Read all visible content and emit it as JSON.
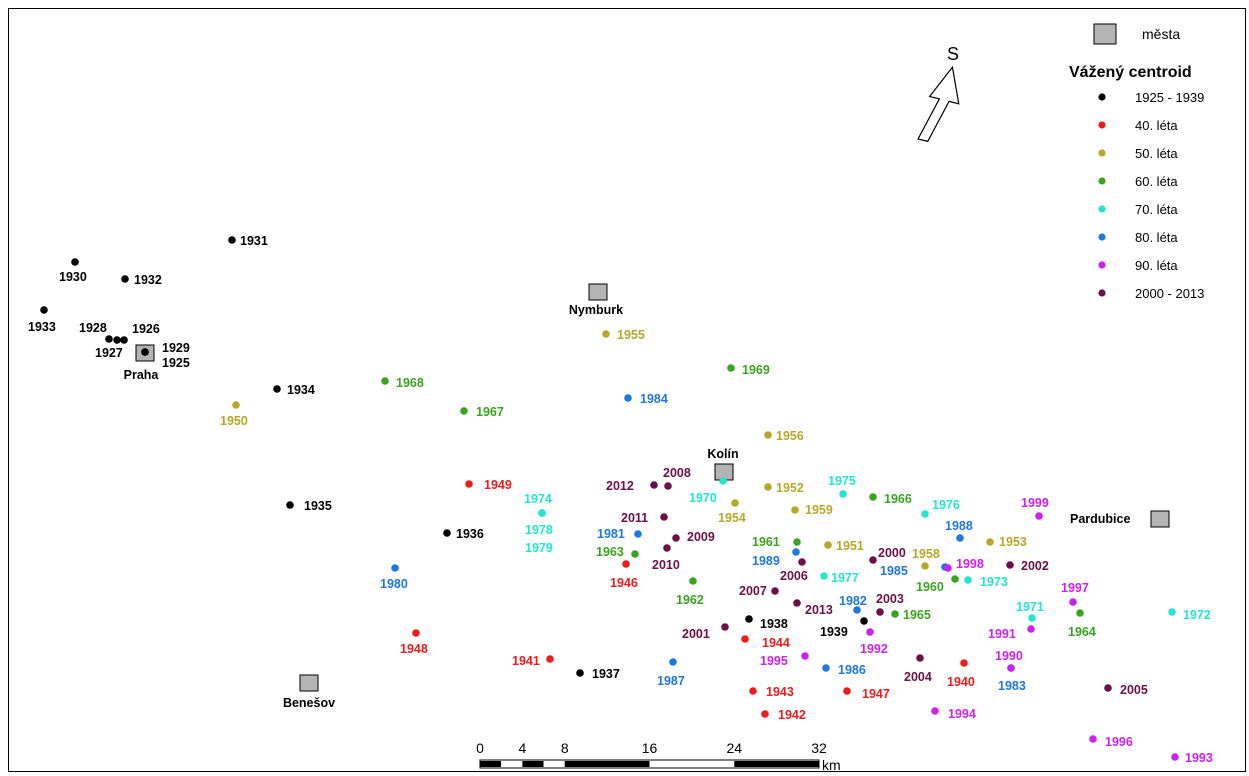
{
  "legend": {
    "city_label": "města",
    "title": "Vážený centroid",
    "items": [
      {
        "label": "1925 - 1939",
        "color": "#000000"
      },
      {
        "label": "40. léta",
        "color": "#ee1c1c"
      },
      {
        "label": "50. léta",
        "color": "#b5a82a"
      },
      {
        "label": "60. léta",
        "color": "#3aa31f"
      },
      {
        "label": "70. léta",
        "color": "#22e6cf"
      },
      {
        "label": "80. léta",
        "color": "#1f77e0"
      },
      {
        "label": "90. léta",
        "color": "#cc22ee"
      },
      {
        "label": "2000 - 2013",
        "color": "#6b1048"
      }
    ]
  },
  "north_arrow": {
    "label": "S"
  },
  "scale_bar": {
    "ticks": [
      "0",
      "4",
      "8",
      "16",
      "24",
      "32"
    ],
    "unit": "km"
  },
  "cities": [
    {
      "name": "Praha"
    },
    {
      "name": "Nymburk"
    },
    {
      "name": "Kolín"
    },
    {
      "name": "Pardubice"
    },
    {
      "name": "Benešov"
    }
  ],
  "centroids": [
    {
      "year": "1925"
    },
    {
      "year": "1926"
    },
    {
      "year": "1927"
    },
    {
      "year": "1928"
    },
    {
      "year": "1929"
    },
    {
      "year": "1930"
    },
    {
      "year": "1931"
    },
    {
      "year": "1932"
    },
    {
      "year": "1933"
    },
    {
      "year": "1934"
    },
    {
      "year": "1935"
    },
    {
      "year": "1936"
    },
    {
      "year": "1937"
    },
    {
      "year": "1938"
    },
    {
      "year": "1939"
    },
    {
      "year": "1940"
    },
    {
      "year": "1941"
    },
    {
      "year": "1942"
    },
    {
      "year": "1943"
    },
    {
      "year": "1944"
    },
    {
      "year": "1946"
    },
    {
      "year": "1947"
    },
    {
      "year": "1948"
    },
    {
      "year": "1949"
    },
    {
      "year": "1950"
    },
    {
      "year": "1951"
    },
    {
      "year": "1952"
    },
    {
      "year": "1953"
    },
    {
      "year": "1954"
    },
    {
      "year": "1955"
    },
    {
      "year": "1956"
    },
    {
      "year": "1958"
    },
    {
      "year": "1959"
    },
    {
      "year": "1960"
    },
    {
      "year": "1961"
    },
    {
      "year": "1962"
    },
    {
      "year": "1963"
    },
    {
      "year": "1964"
    },
    {
      "year": "1965"
    },
    {
      "year": "1966"
    },
    {
      "year": "1967"
    },
    {
      "year": "1968"
    },
    {
      "year": "1969"
    },
    {
      "year": "1970"
    },
    {
      "year": "1971"
    },
    {
      "year": "1972"
    },
    {
      "year": "1973"
    },
    {
      "year": "1974"
    },
    {
      "year": "1975"
    },
    {
      "year": "1976"
    },
    {
      "year": "1977"
    },
    {
      "year": "1978"
    },
    {
      "year": "1979"
    },
    {
      "year": "1980"
    },
    {
      "year": "1981"
    },
    {
      "year": "1982"
    },
    {
      "year": "1983"
    },
    {
      "year": "1984"
    },
    {
      "year": "1985"
    },
    {
      "year": "1986"
    },
    {
      "year": "1987"
    },
    {
      "year": "1988"
    },
    {
      "year": "1989"
    },
    {
      "year": "1990"
    },
    {
      "year": "1991"
    },
    {
      "year": "1992"
    },
    {
      "year": "1993"
    },
    {
      "year": "1994"
    },
    {
      "year": "1995"
    },
    {
      "year": "1996"
    },
    {
      "year": "1997"
    },
    {
      "year": "1998"
    },
    {
      "year": "1999"
    },
    {
      "year": "2000"
    },
    {
      "year": "2001"
    },
    {
      "year": "2002"
    },
    {
      "year": "2003"
    },
    {
      "year": "2004"
    },
    {
      "year": "2005"
    },
    {
      "year": "2006"
    },
    {
      "year": "2007"
    },
    {
      "year": "2008"
    },
    {
      "year": "2009"
    },
    {
      "year": "2010"
    },
    {
      "year": "2011"
    },
    {
      "year": "2012"
    },
    {
      "year": "2013"
    }
  ]
}
